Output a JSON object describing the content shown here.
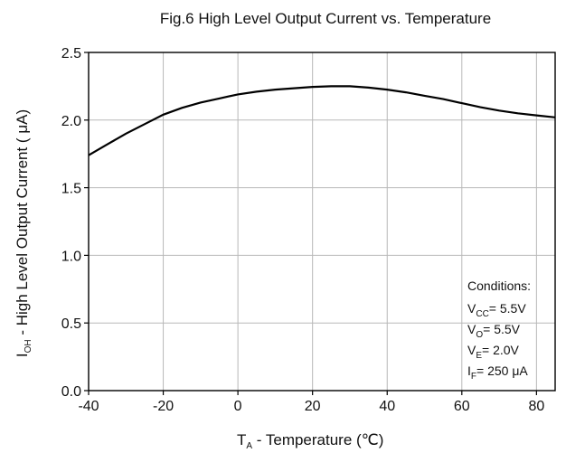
{
  "chart_data": {
    "type": "line",
    "title": "Fig.6 High Level Output Current vs. Temperature",
    "xlabel": {
      "main": "T",
      "sub": "A",
      "rest": " - Temperature (℃)"
    },
    "ylabel": {
      "main": "I",
      "sub": "OH",
      "rest": " - High Level Output Current ( μA)"
    },
    "xlim": [
      -40,
      85
    ],
    "ylim": [
      0,
      2.5
    ],
    "x_ticks": [
      -40,
      -20,
      0,
      20,
      40,
      60,
      80
    ],
    "x_tick_labels": [
      "-40",
      "-20",
      "0",
      "20",
      "40",
      "60",
      "80"
    ],
    "y_ticks": [
      0,
      0.5,
      1.0,
      1.5,
      2.0,
      2.5
    ],
    "y_tick_labels": [
      "0.0",
      "0.5",
      "1.0",
      "1.5",
      "2.0",
      "2.5"
    ],
    "grid": true,
    "series": [
      {
        "x": [
          -40,
          -35,
          -30,
          -25,
          -20,
          -15,
          -10,
          -5,
          0,
          5,
          10,
          15,
          20,
          25,
          30,
          35,
          40,
          45,
          50,
          55,
          60,
          65,
          70,
          75,
          80,
          85
        ],
        "y": [
          1.74,
          1.82,
          1.9,
          1.97,
          2.04,
          2.09,
          2.13,
          2.16,
          2.19,
          2.21,
          2.225,
          2.235,
          2.245,
          2.25,
          2.25,
          2.24,
          2.225,
          2.205,
          2.18,
          2.155,
          2.125,
          2.095,
          2.07,
          2.05,
          2.035,
          2.02
        ]
      }
    ],
    "conditions": {
      "heading": "Conditions:",
      "lines": [
        {
          "main": "V",
          "sub": "CC",
          "rest": "= 5.5V"
        },
        {
          "main": "V",
          "sub": "O",
          "rest": "= 5.5V"
        },
        {
          "main": "V",
          "sub": "E",
          "rest": "= 2.0V"
        },
        {
          "main": "I",
          "sub": "F",
          "rest": "= 250 μA"
        }
      ]
    }
  }
}
